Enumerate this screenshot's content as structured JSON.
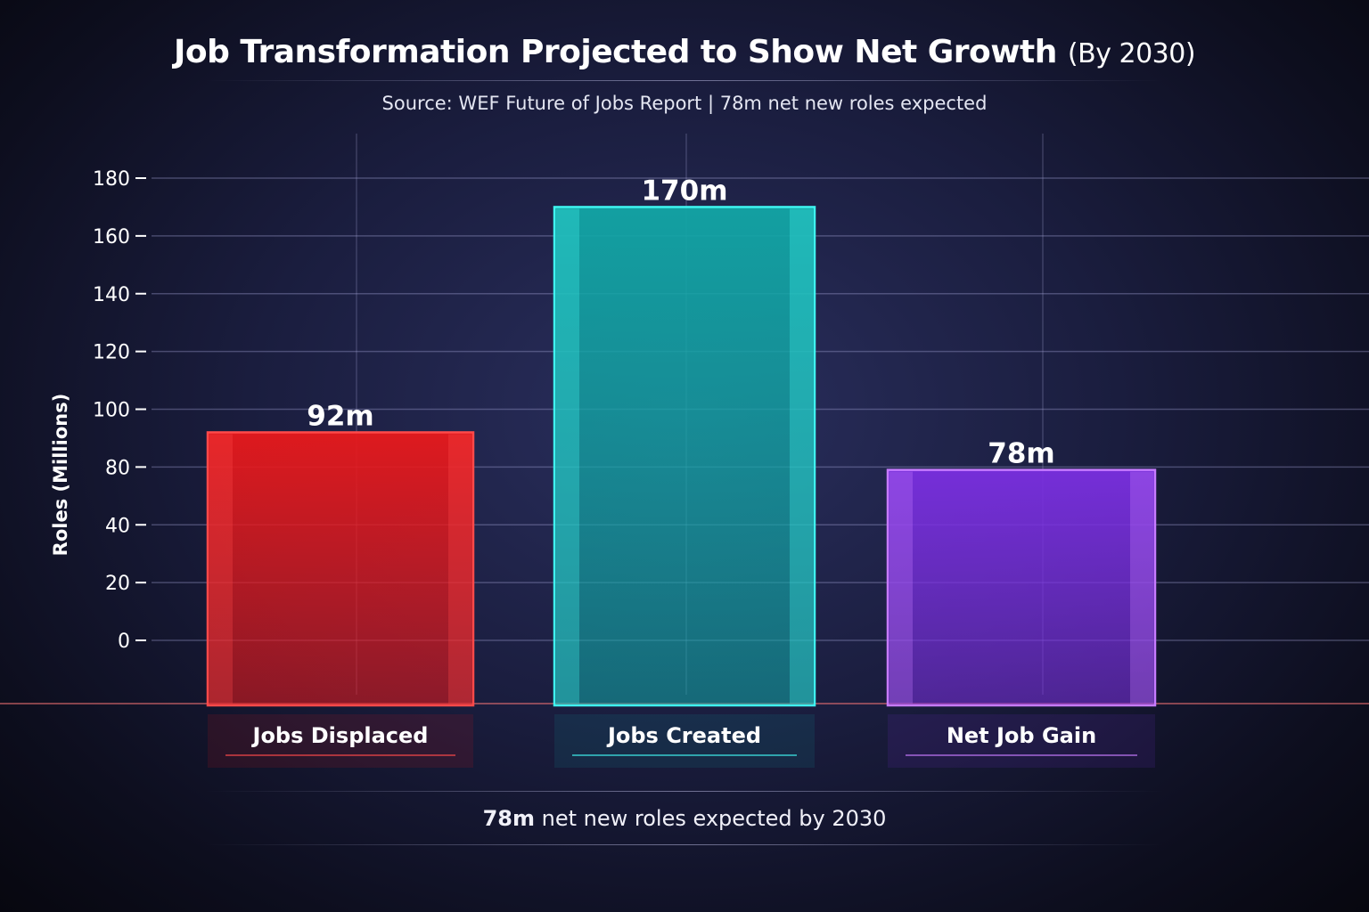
{
  "chart_data": {
    "type": "bar",
    "title": "Job Transformation Projected to Show Net Growth",
    "title_suffix": "(By 2030)",
    "subtitle": "Source: WEF Future of Jobs Report | 78m net new roles expected",
    "ylabel": "Roles (Millions)",
    "xlabel": "",
    "y_ticks": [
      180,
      160,
      140,
      120,
      100,
      80,
      40,
      20,
      0
    ],
    "ylim": [
      0,
      180
    ],
    "grid": true,
    "categories": [
      "Jobs Displaced",
      "Jobs Created",
      "Net Job Gain"
    ],
    "values": [
      92,
      170,
      78
    ],
    "data_labels": [
      "92m",
      "170m",
      "78m"
    ],
    "colors": [
      "#e8191c",
      "#12a6a6",
      "#7a2fe0"
    ],
    "glow_colors": [
      "#ff4a4a",
      "#3ff5f0",
      "#c77bff"
    ]
  },
  "footer": {
    "bold": "78m",
    "text": " net new roles expected by 2030"
  }
}
